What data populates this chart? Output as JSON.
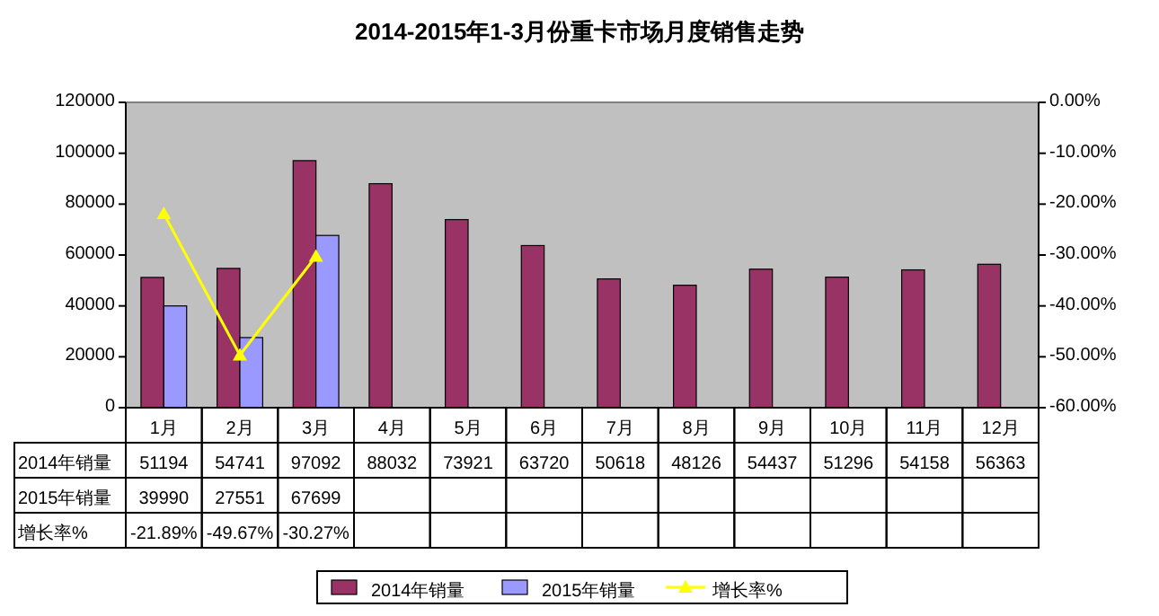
{
  "chart_data": {
    "type": "bar",
    "title": "2014-2015年1-3月份重卡市场月度销售走势",
    "categories": [
      "1月",
      "2月",
      "3月",
      "4月",
      "5月",
      "6月",
      "7月",
      "8月",
      "9月",
      "10月",
      "11月",
      "12月"
    ],
    "series": [
      {
        "name": "2014年销量",
        "color": "#993366",
        "values": [
          51194,
          54741,
          97092,
          88032,
          73921,
          63720,
          50618,
          48126,
          54437,
          51296,
          54158,
          56363
        ],
        "value_labels": [
          "51194",
          "54741",
          "97092",
          "88032",
          "73921",
          "63720",
          "50618",
          "48126",
          "54437",
          "51296",
          "54158",
          "56363"
        ]
      },
      {
        "name": "2015年销量",
        "color": "#9999ff",
        "values": [
          39990,
          27551,
          67699,
          null,
          null,
          null,
          null,
          null,
          null,
          null,
          null,
          null
        ],
        "value_labels": [
          "39990",
          "27551",
          "67699",
          null,
          null,
          null,
          null,
          null,
          null,
          null,
          null,
          null
        ]
      },
      {
        "name": "增长率%",
        "type": "line",
        "axis": "y2",
        "color": "#ffff00",
        "marker": "triangle",
        "values": [
          -21.89,
          -49.67,
          -30.27,
          null,
          null,
          null,
          null,
          null,
          null,
          null,
          null,
          null
        ],
        "value_labels": [
          "-21.89%",
          "-49.67%",
          "-30.27%",
          null,
          null,
          null,
          null,
          null,
          null,
          null,
          null,
          null
        ]
      }
    ],
    "ylim": [
      0,
      120000
    ],
    "yticks": [
      0,
      20000,
      40000,
      60000,
      80000,
      100000,
      120000
    ],
    "y2lim": [
      -60,
      0
    ],
    "y2ticks": [
      {
        "value": -60,
        "label": "-60.00%"
      },
      {
        "value": -50,
        "label": "-50.00%"
      },
      {
        "value": -40,
        "label": "-40.00%"
      },
      {
        "value": -30,
        "label": "-30.00%"
      },
      {
        "value": -20,
        "label": "-20.00%"
      },
      {
        "value": -10,
        "label": "-10.00%"
      },
      {
        "value": 0,
        "label": "0.00%"
      }
    ],
    "grid": false,
    "legend": "bottom"
  }
}
